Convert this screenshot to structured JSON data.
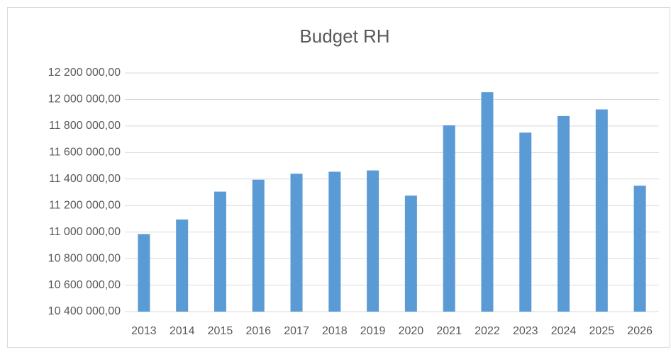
{
  "chart_data": {
    "type": "bar",
    "title": "Budget RH",
    "categories": [
      "2013",
      "2014",
      "2015",
      "2016",
      "2017",
      "2018",
      "2019",
      "2020",
      "2021",
      "2022",
      "2023",
      "2024",
      "2025",
      "2026"
    ],
    "values": [
      10985000,
      11095000,
      11305000,
      11395000,
      11440000,
      11455000,
      11465000,
      11275000,
      11805000,
      12055000,
      11750000,
      11875000,
      11925000,
      11350000
    ],
    "color": "#5b9bd5",
    "ylim": [
      10400000,
      12200000
    ],
    "yticks": [
      {
        "value": 10400000,
        "label": "10 400 000,00"
      },
      {
        "value": 10600000,
        "label": "10 600 000,00"
      },
      {
        "value": 10800000,
        "label": "10 800 000,00"
      },
      {
        "value": 11000000,
        "label": "11 000 000,00"
      },
      {
        "value": 11200000,
        "label": "11 200 000,00"
      },
      {
        "value": 11400000,
        "label": "11 400 000,00"
      },
      {
        "value": 11600000,
        "label": "11 600 000,00"
      },
      {
        "value": 11800000,
        "label": "11 800 000,00"
      },
      {
        "value": 12000000,
        "label": "12 000 000,00"
      },
      {
        "value": 12200000,
        "label": "12 200 000,00"
      }
    ],
    "grid": true
  }
}
